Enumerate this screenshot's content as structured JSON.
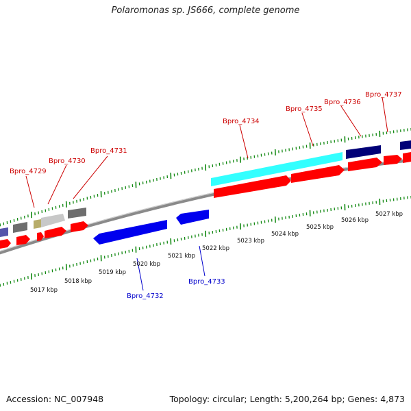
{
  "title": "Polaromonas sp. JS666, complete genome",
  "footer": {
    "accession": "Accession: NC_007948",
    "stats": "Topology: circular; Length: 5,200,264 bp; Genes: 4,873"
  },
  "colors": {
    "forward_gene": "#ff0000",
    "reverse_gene": "#0000ee",
    "forward_label": "#cc0000",
    "reverse_label": "#0000cc",
    "backbone": "#888888",
    "ticks": "#007700",
    "highlight": "#00ffff",
    "dark_feature": "#000077"
  },
  "ruler": {
    "labels": [
      "5017 kbp",
      "5018 kbp",
      "5019 kbp",
      "5020 kbp",
      "5021 kbp",
      "5022 kbp",
      "5023 kbp",
      "5024 kbp",
      "5025 kbp",
      "5026 kbp",
      "5027 kbp"
    ]
  },
  "genes": {
    "forward": [
      {
        "label": "Bpro_4729"
      },
      {
        "label": "Bpro_4730"
      },
      {
        "label": "Bpro_4731"
      },
      {
        "label": "Bpro_4734"
      },
      {
        "label": "Bpro_4735"
      },
      {
        "label": "Bpro_4736"
      },
      {
        "label": "Bpro_4737"
      }
    ],
    "reverse": [
      {
        "label": "Bpro_4732"
      },
      {
        "label": "Bpro_4733"
      }
    ]
  }
}
